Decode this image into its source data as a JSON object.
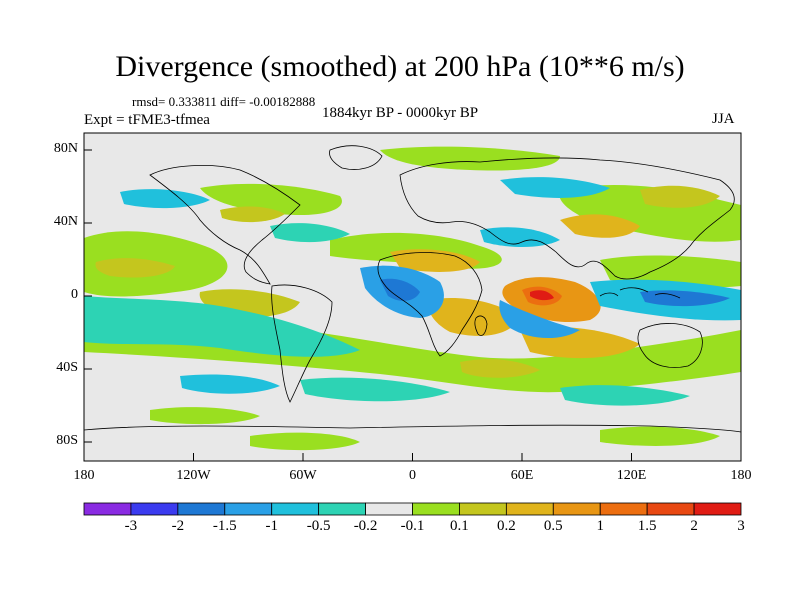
{
  "title": "Divergence (smoothed) at 200 hPa (10**6 m/s)",
  "stats": "rmsd= 0.333811 diff= -0.00182888",
  "experiment": "Expt = tFME3-tfmea",
  "period": "1884kyr BP - 0000kyr BP",
  "season": "JJA",
  "lat_ticks": [
    "80N",
    "40N",
    "0",
    "40S",
    "80S"
  ],
  "lon_ticks": [
    "180",
    "120W",
    "60W",
    "0",
    "60E",
    "120E",
    "180"
  ],
  "colorbar": {
    "colors": [
      "#8a2be2",
      "#3b3bef",
      "#1e78d4",
      "#2aa0e6",
      "#20c0dc",
      "#2dd3b4",
      "#e8e8e8",
      "#9adf20",
      "#c4c61e",
      "#e0b41c",
      "#e89614",
      "#ec6e10",
      "#e84812",
      "#e01c14"
    ],
    "labels": [
      "-3",
      "-2",
      "-1.5",
      "-1",
      "-0.5",
      "-0.2",
      "-0.1",
      "0.1",
      "0.2",
      "0.5",
      "1",
      "1.5",
      "2",
      "3"
    ]
  }
}
